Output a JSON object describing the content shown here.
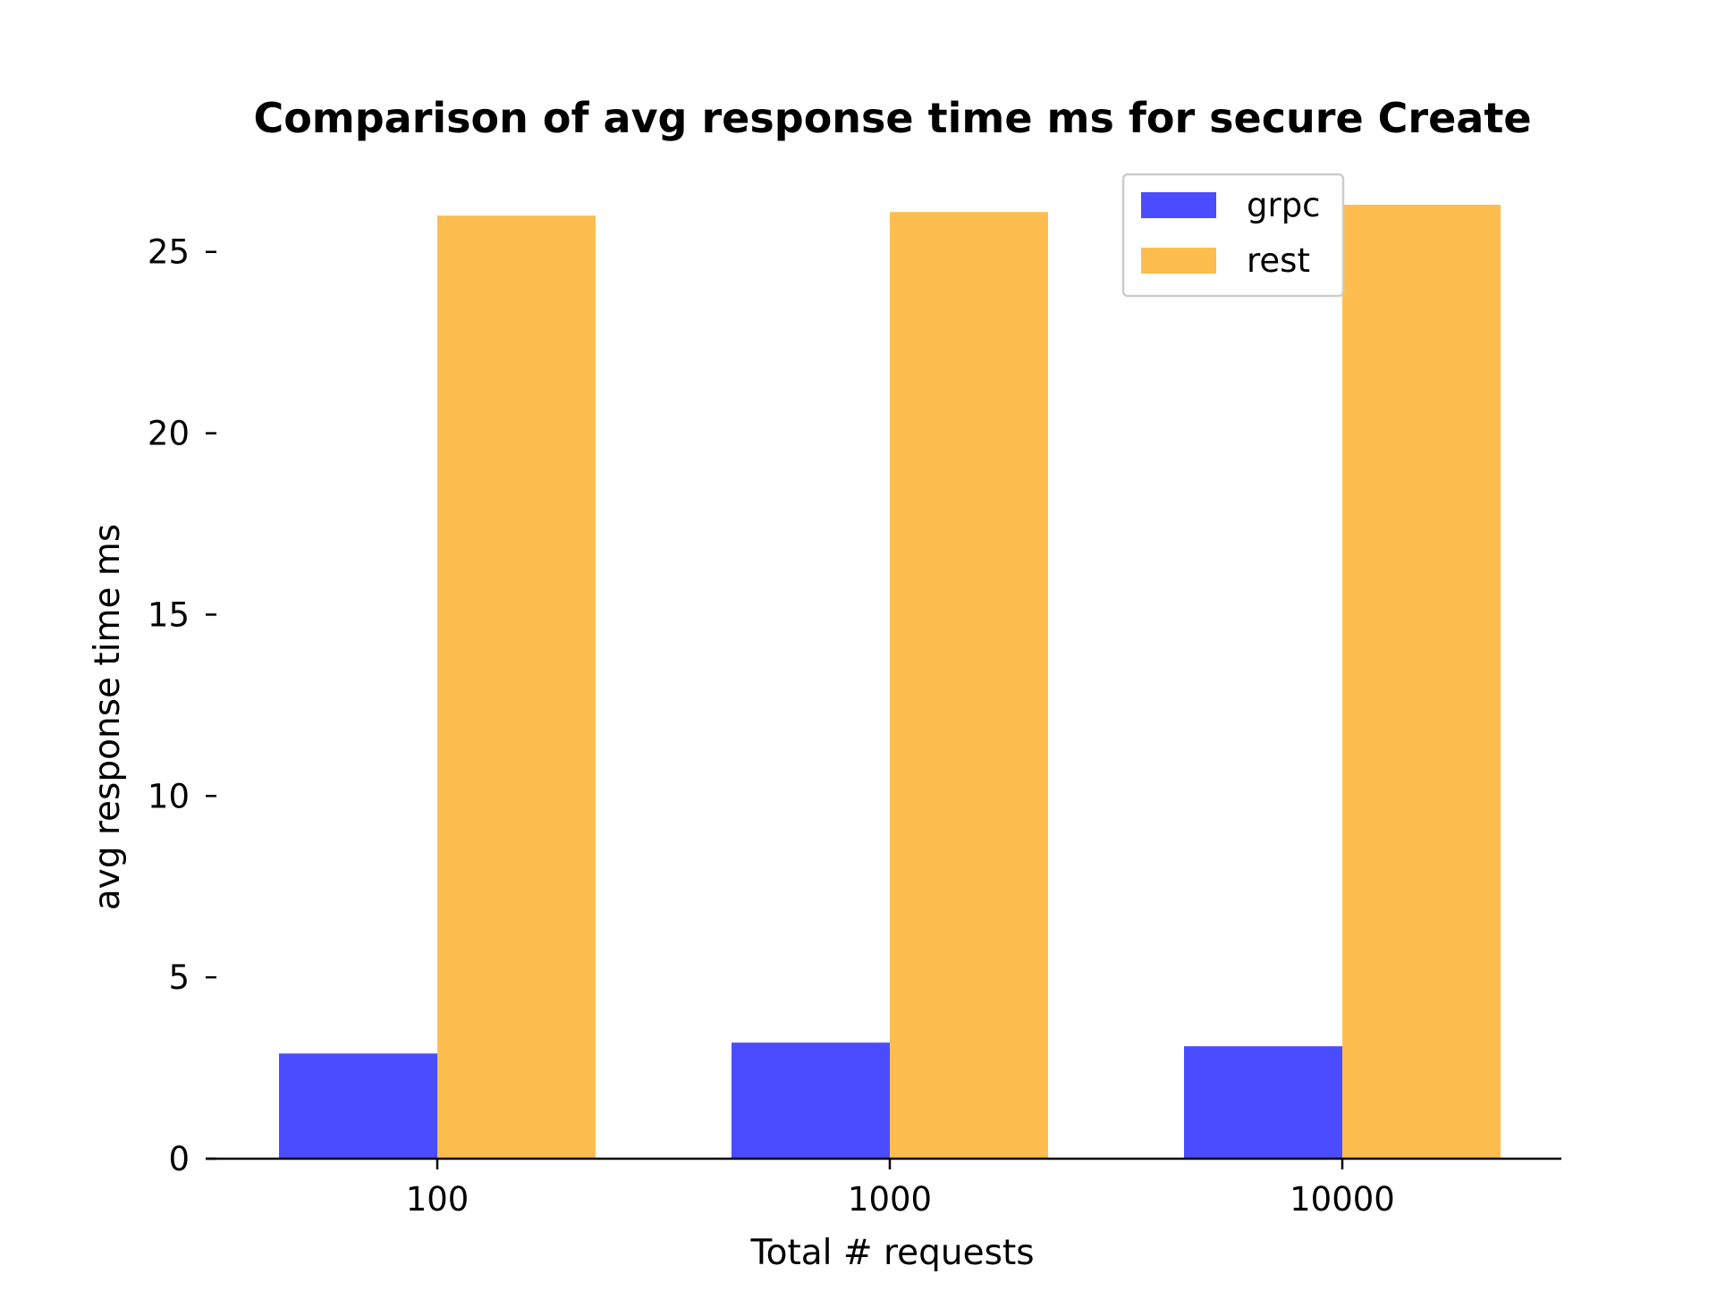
{
  "chart_data": {
    "type": "bar",
    "title": "Comparison of avg response time ms for secure Create",
    "xlabel": "Total # requests",
    "ylabel": "avg response time ms",
    "categories": [
      "100",
      "1000",
      "10000"
    ],
    "series": [
      {
        "name": "grpc",
        "values": [
          2.9,
          3.2,
          3.1
        ],
        "color": "#4B4BFF"
      },
      {
        "name": "rest",
        "values": [
          26.0,
          26.1,
          26.3
        ],
        "color": "#FDBE4F"
      }
    ],
    "ylim": [
      0,
      26.3
    ],
    "yticks": [
      0,
      5,
      10,
      15,
      20,
      25
    ],
    "grid": false,
    "legend_position": "top-right"
  }
}
